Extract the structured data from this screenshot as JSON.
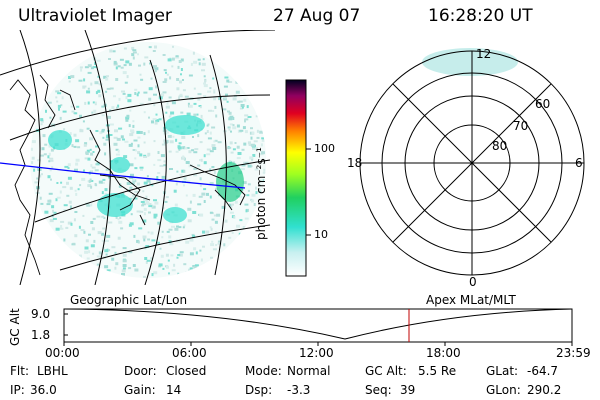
{
  "header": {
    "instrument": "Ultraviolet Imager",
    "date": "27 Aug 07",
    "time": "16:28:20 UT"
  },
  "colorbar": {
    "label": "photon cm⁻²s⁻¹",
    "ticks": [
      "100",
      "10"
    ]
  },
  "polar_plot": {
    "mlt_labels": {
      "top": "12",
      "left": "18",
      "right": "6",
      "bottom": "0"
    },
    "lat_labels": [
      "60",
      "70",
      "80"
    ]
  },
  "map_caption": "Geographic Lat/Lon",
  "polar_caption": "Apex MLat/MLT",
  "altitude_plot": {
    "ylabel": "GC Alt",
    "yticks": [
      "9.0",
      "1.8"
    ],
    "xticks": [
      "00:00",
      "06:00",
      "12:00",
      "18:00",
      "23:59"
    ]
  },
  "status": [
    [
      {
        "label": "Flt:",
        "value": "LBHL"
      },
      {
        "label": "Door:",
        "value": "Closed"
      },
      {
        "label": "Mode:",
        "value": "Normal"
      },
      {
        "label": "GC Alt:",
        "value": "5.5 Re"
      },
      {
        "label": "GLat:",
        "value": "-64.7"
      }
    ],
    [
      {
        "label": "IP:",
        "value": "36.0"
      },
      {
        "label": "Gain:",
        "value": "14"
      },
      {
        "label": "Dsp:",
        "value": "-3.3"
      },
      {
        "label": "Seq:",
        "value": "39"
      },
      {
        "label": "GLon:",
        "value": "290.2"
      }
    ]
  ],
  "colors": {
    "cyan_fill": "#3fe0d0",
    "speckle": "#b6e0dc",
    "terminator_line": "#0000ff",
    "cursor_line": "#c00000"
  }
}
